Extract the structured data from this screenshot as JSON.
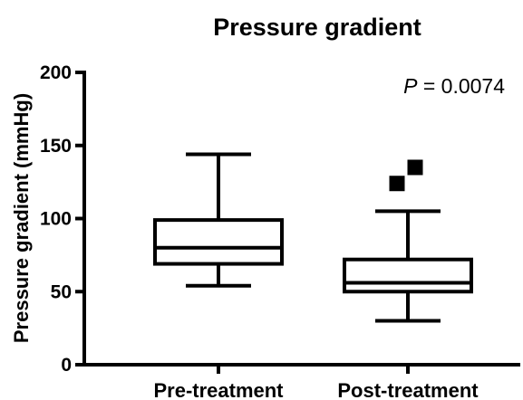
{
  "chart_data": {
    "type": "box",
    "title": "Pressure gradient",
    "ylabel": "Pressure gradient (mmHg)",
    "xlabel": "",
    "ylim": [
      0,
      200
    ],
    "yticks": [
      0,
      50,
      100,
      150,
      200
    ],
    "categories": [
      "Pre-treatment",
      "Post-treatment"
    ],
    "boxes": [
      {
        "category": "Pre-treatment",
        "whisker_low": 54,
        "q1": 69,
        "median": 80,
        "q3": 99,
        "whisker_high": 144,
        "outliers": []
      },
      {
        "category": "Post-treatment",
        "whisker_low": 30,
        "q1": 50,
        "median": 56,
        "q3": 72,
        "whisker_high": 105,
        "outliers": [
          124,
          135
        ]
      }
    ],
    "annotation": {
      "p_symbol": "P",
      "p_text": " = 0.0074"
    },
    "grid": false,
    "legend": "none"
  }
}
